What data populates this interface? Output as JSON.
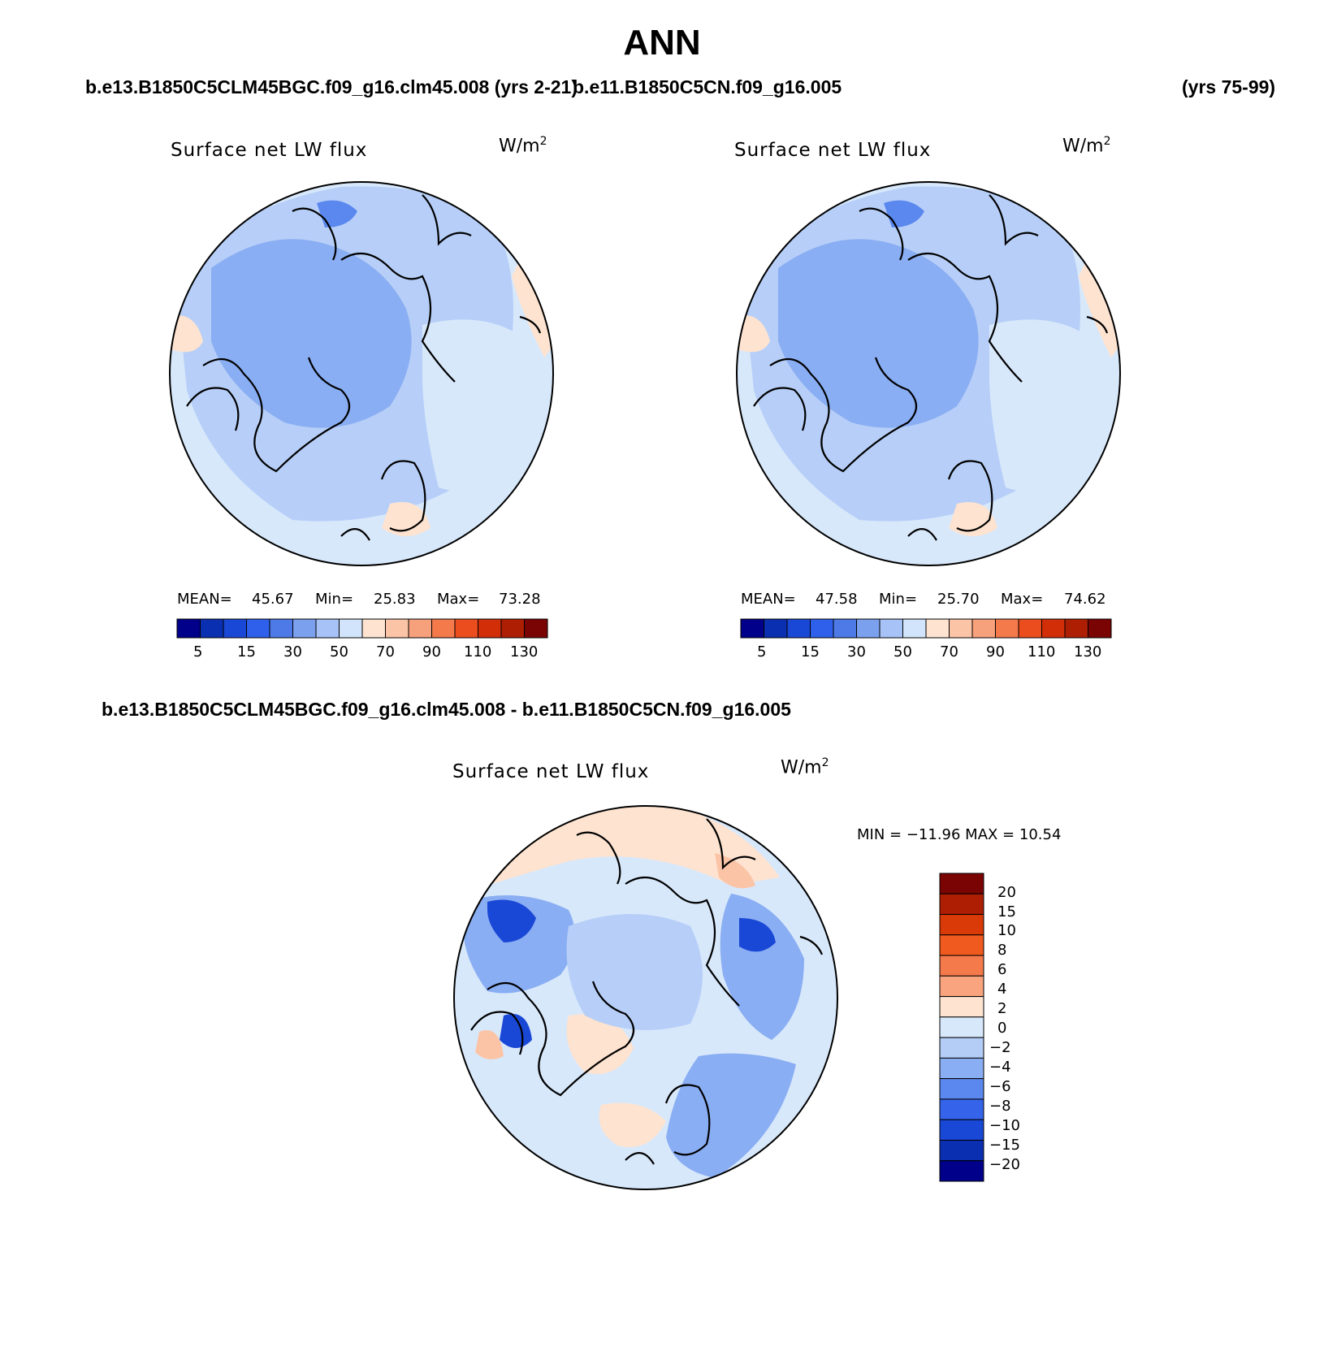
{
  "header": {
    "title": "ANN",
    "case_a": "b.e13.B1850C5CLM45BGC.f09_g16.clm45.008 (yrs 2-21)",
    "case_b": "b.e11.B1850C5CN.f09_g16.005",
    "case_b_years": "(yrs 75-99)",
    "diff_title": "b.e13.B1850C5CLM45BGC.f09_g16.clm45.008 - b.e11.B1850C5CN.f09_g16.005"
  },
  "panels": [
    {
      "title": "Surface net LW flux",
      "units_base": "W/m",
      "units_exp": "2",
      "stats": {
        "mean_label": "MEAN=",
        "mean": "45.67",
        "min_label": "Min=",
        "min": "25.83",
        "max_label": "Max=",
        "max": "73.28"
      }
    },
    {
      "title": "Surface net LW flux",
      "units_base": "W/m",
      "units_exp": "2",
      "stats": {
        "mean_label": "MEAN=",
        "mean": "47.58",
        "min_label": "Min=",
        "min": "25.70",
        "max_label": "Max=",
        "max": "74.62"
      }
    }
  ],
  "diff_panel": {
    "title": "Surface net LW flux",
    "units_base": "W/m",
    "units_exp": "2",
    "minmax": "MIN = −11.96 MAX =   10.54"
  },
  "colorbar_main": {
    "colors": [
      "#00008a",
      "#0a2fb0",
      "#1a48d6",
      "#2e60ec",
      "#4d7ae6",
      "#7aa0ee",
      "#a7c2f6",
      "#d2e4fb",
      "#fde3d0",
      "#fbc4a6",
      "#f7a07c",
      "#f47a4c",
      "#ec4d1e",
      "#d22e08",
      "#ad1e02",
      "#7a0404"
    ],
    "tick_labels": [
      "5",
      "15",
      "30",
      "50",
      "70",
      "90",
      "110",
      "130"
    ]
  },
  "colorbar_diff": {
    "colors": [
      "#7a0404",
      "#ad1e02",
      "#d93a08",
      "#f05a1e",
      "#f47a4c",
      "#f9a47e",
      "#fde3d0",
      "#d7e8fb",
      "#b3cdf7",
      "#8aaef3",
      "#5b88ee",
      "#3564ea",
      "#1a48d6",
      "#0a2fb0",
      "#00008a"
    ],
    "tick_labels": [
      "20",
      "15",
      "10",
      "8",
      "6",
      "4",
      "2",
      "0",
      "−2",
      "−4",
      "−6",
      "−8",
      "−10",
      "−15",
      "−20"
    ]
  },
  "map_palette": {
    "ocean_light": "#d8e8fb",
    "mid_blue": "#b7cff8",
    "blue": "#8aaef3",
    "deep_blue": "#5b88ee",
    "peach": "#fde3d0",
    "dark_blue": "#1a48d6",
    "peach_dark": "#fbc4a6"
  }
}
